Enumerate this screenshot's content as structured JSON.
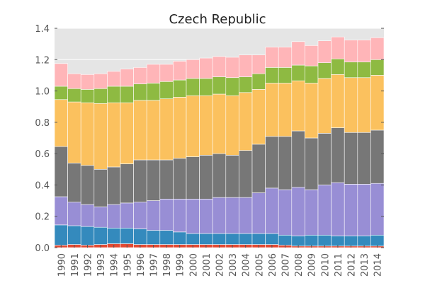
{
  "chart_data": {
    "type": "bar",
    "stacked": true,
    "title": "Czech Republic",
    "xlabel": "",
    "ylabel": "",
    "ylim": [
      0,
      1.4
    ],
    "yticks": [
      "0.0",
      "0.2",
      "0.4",
      "0.6",
      "0.8",
      "1.0",
      "1.2",
      "1.4"
    ],
    "ytick_values": [
      0,
      0.2,
      0.4,
      0.6,
      0.8,
      1.0,
      1.2,
      1.4
    ],
    "grid": true,
    "legend": "none",
    "categories": [
      "1990",
      "1991",
      "1992",
      "1993",
      "1994",
      "1995",
      "1996",
      "1997",
      "1998",
      "1999",
      "2000",
      "2001",
      "2002",
      "2003",
      "2004",
      "2005",
      "2006",
      "2007",
      "2008",
      "2009",
      "2010",
      "2011",
      "2012",
      "2013",
      "2014"
    ],
    "series": [
      {
        "color": "#e24a33",
        "values": [
          0.015,
          0.02,
          0.015,
          0.02,
          0.025,
          0.025,
          0.02,
          0.02,
          0.02,
          0.02,
          0.02,
          0.02,
          0.02,
          0.02,
          0.02,
          0.02,
          0.02,
          0.015,
          0.01,
          0.01,
          0.01,
          0.01,
          0.01,
          0.01,
          0.01
        ]
      },
      {
        "color": "#348abd",
        "values": [
          0.13,
          0.12,
          0.12,
          0.11,
          0.1,
          0.1,
          0.1,
          0.09,
          0.09,
          0.08,
          0.07,
          0.07,
          0.07,
          0.07,
          0.07,
          0.07,
          0.07,
          0.065,
          0.065,
          0.07,
          0.07,
          0.065,
          0.065,
          0.065,
          0.07
        ]
      },
      {
        "color": "#988ed5",
        "values": [
          0.18,
          0.15,
          0.14,
          0.13,
          0.15,
          0.16,
          0.17,
          0.19,
          0.2,
          0.21,
          0.22,
          0.22,
          0.23,
          0.23,
          0.23,
          0.26,
          0.29,
          0.29,
          0.31,
          0.29,
          0.32,
          0.34,
          0.33,
          0.33,
          0.33
        ]
      },
      {
        "color": "#777777",
        "values": [
          0.32,
          0.25,
          0.25,
          0.24,
          0.24,
          0.25,
          0.27,
          0.26,
          0.25,
          0.26,
          0.27,
          0.28,
          0.28,
          0.27,
          0.3,
          0.31,
          0.33,
          0.34,
          0.36,
          0.33,
          0.33,
          0.35,
          0.33,
          0.33,
          0.34
        ]
      },
      {
        "color": "#fbc15e",
        "values": [
          0.3,
          0.39,
          0.4,
          0.42,
          0.41,
          0.39,
          0.38,
          0.38,
          0.39,
          0.39,
          0.39,
          0.38,
          0.38,
          0.38,
          0.37,
          0.35,
          0.34,
          0.34,
          0.32,
          0.35,
          0.35,
          0.34,
          0.35,
          0.35,
          0.35
        ]
      },
      {
        "color": "#8eba42",
        "values": [
          0.085,
          0.085,
          0.085,
          0.095,
          0.105,
          0.105,
          0.105,
          0.11,
          0.11,
          0.11,
          0.11,
          0.11,
          0.11,
          0.115,
          0.1,
          0.1,
          0.1,
          0.1,
          0.1,
          0.11,
          0.1,
          0.1,
          0.1,
          0.1,
          0.1
        ]
      },
      {
        "color": "#ffb5b8",
        "values": [
          0.145,
          0.095,
          0.095,
          0.095,
          0.095,
          0.11,
          0.105,
          0.12,
          0.11,
          0.12,
          0.12,
          0.13,
          0.13,
          0.13,
          0.14,
          0.12,
          0.13,
          0.13,
          0.15,
          0.13,
          0.14,
          0.14,
          0.14,
          0.14,
          0.14
        ]
      }
    ]
  }
}
